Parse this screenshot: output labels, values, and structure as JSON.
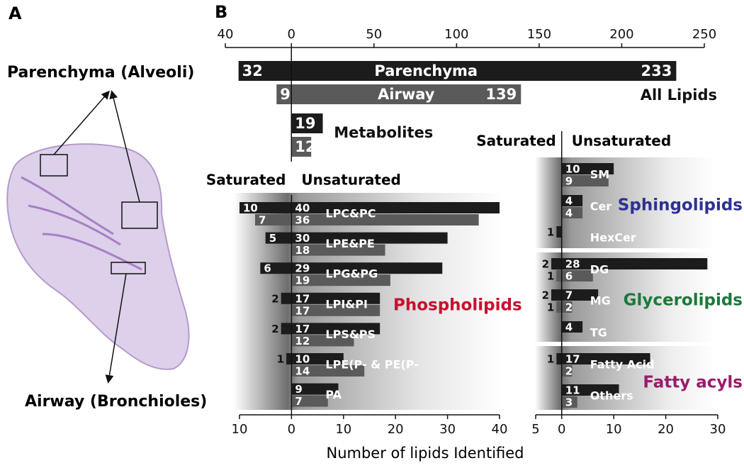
{
  "panel_a": {
    "letter": "A",
    "labels": [
      "Parenchyma (Alveoli)",
      "Airway (Bronchioles)"
    ]
  },
  "panel_b": {
    "letter": "B"
  },
  "xlabel": "Number of lipids Identified",
  "chart_data": [
    {
      "type": "bar",
      "categories": [
        "All Lipids",
        "Metabolites"
      ],
      "xlim": [
        -40,
        250
      ],
      "xticks": [
        {
          "value": -40,
          "label": "40"
        },
        0,
        50,
        100,
        150,
        200,
        250
      ],
      "series": [
        {
          "name": "Parenchyma",
          "color": "#1c1c1c",
          "saturated": [
            32,
            null
          ],
          "unsaturated": [
            233,
            19
          ]
        },
        {
          "name": "Airway",
          "color": "#5a5a5a",
          "saturated": [
            9,
            null
          ],
          "unsaturated": [
            139,
            12
          ]
        }
      ]
    },
    {
      "type": "bar",
      "title": "Phospholipids",
      "title_color": "#c8102e",
      "saturated_label": "Saturated",
      "unsaturated_label": "Unsaturated",
      "categories": [
        "LPC&PC",
        "LPE&PE",
        "LPG&PG",
        "LPI&PI",
        "LPS&PS",
        "LPE(P- & PE(P-",
        "PA"
      ],
      "xlim": [
        -10,
        40
      ],
      "xticks": [
        {
          "value": -10,
          "label": "10"
        },
        0,
        10,
        20,
        30,
        40
      ],
      "series": [
        {
          "name": "Parenchyma",
          "color": "#1c1c1c",
          "saturated": [
            10,
            5,
            6,
            2,
            2,
            1,
            null
          ],
          "unsaturated": [
            40,
            30,
            29,
            17,
            17,
            10,
            9
          ]
        },
        {
          "name": "Airway",
          "color": "#5a5a5a",
          "saturated": [
            7,
            null,
            null,
            null,
            null,
            null,
            null
          ],
          "unsaturated": [
            36,
            18,
            19,
            17,
            12,
            14,
            7
          ]
        }
      ]
    },
    {
      "type": "bar",
      "title": "Sphingolipids",
      "title_color": "#2e3192",
      "saturated_label": "Saturated",
      "unsaturated_label": "Unsaturated",
      "categories": [
        "SM",
        "Cer",
        "HexCer"
      ],
      "xlim": [
        -5,
        30
      ],
      "series": [
        {
          "name": "Parenchyma",
          "color": "#1c1c1c",
          "saturated": [
            null,
            null,
            1
          ],
          "unsaturated": [
            10,
            4,
            null
          ]
        },
        {
          "name": "Airway",
          "color": "#5a5a5a",
          "saturated": [
            null,
            null,
            null
          ],
          "unsaturated": [
            9,
            4,
            null
          ]
        }
      ]
    },
    {
      "type": "bar",
      "title": "Glycerolipids",
      "title_color": "#1a7a3a",
      "categories": [
        "DG",
        "MG",
        "TG"
      ],
      "xlim": [
        -5,
        30
      ],
      "series": [
        {
          "name": "Parenchyma",
          "color": "#1c1c1c",
          "saturated": [
            2,
            2,
            null
          ],
          "unsaturated": [
            28,
            7,
            4
          ]
        },
        {
          "name": "Airway",
          "color": "#5a5a5a",
          "saturated": [
            1,
            1,
            null
          ],
          "unsaturated": [
            6,
            2,
            null
          ]
        }
      ]
    },
    {
      "type": "bar",
      "title": "Fatty acyls",
      "title_color": "#9b1b6b",
      "categories": [
        "Fatty Acid",
        "Others"
      ],
      "xlim": [
        -5,
        30
      ],
      "xticks": [
        {
          "value": -5,
          "label": "5"
        },
        0,
        10,
        20,
        30
      ],
      "series": [
        {
          "name": "Parenchyma",
          "color": "#1c1c1c",
          "saturated": [
            1,
            null
          ],
          "unsaturated": [
            17,
            11
          ]
        },
        {
          "name": "Airway",
          "color": "#5a5a5a",
          "saturated": [
            null,
            null
          ],
          "unsaturated": [
            2,
            3
          ]
        }
      ]
    }
  ]
}
